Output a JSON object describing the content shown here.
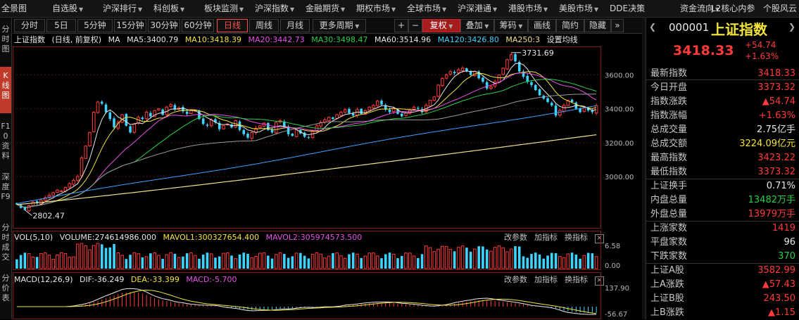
{
  "topmenu": [
    {
      "label": "全景图",
      "arrow": false
    },
    {
      "label": "自选股",
      "arrow": true
    },
    {
      "label": "沪深排行",
      "arrow": true
    },
    {
      "label": "科创板",
      "arrow": true
    },
    {
      "label": "板块监测",
      "arrow": true
    },
    {
      "label": "沪深指数",
      "arrow": true
    },
    {
      "label": "金融期货",
      "arrow": true
    },
    {
      "label": "期权市场",
      "arrow": true
    },
    {
      "label": "全球市场",
      "arrow": true
    },
    {
      "label": "沪深港通",
      "arrow": true
    },
    {
      "label": "港股市场",
      "arrow": true
    },
    {
      "label": "美股市场",
      "arrow": true
    },
    {
      "label": "DDE决策",
      "arrow": false
    },
    {
      "label": "资金流向",
      "arrow": true
    },
    {
      "label": "L2核心内参",
      "arrow": false
    },
    {
      "label": "个股风云",
      "arrow": false
    }
  ],
  "lefttabs": [
    {
      "label": "分时图",
      "active": false
    },
    {
      "label": "K线图",
      "active": true
    },
    {
      "label": "F10资料",
      "active": false
    },
    {
      "label": "深度F9",
      "active": false
    },
    {
      "label": "分时成交",
      "active": false
    },
    {
      "label": "分价表",
      "active": false
    }
  ],
  "toolbar": {
    "periods": [
      "分时",
      "5日",
      "5分钟",
      "15分钟",
      "30分钟",
      "60分钟",
      "日线",
      "周线",
      "月线"
    ],
    "active_period": "日线",
    "more_period": "更多周期",
    "plus": "+",
    "minus": "−",
    "fuquan": "复权",
    "overlay": "叠加",
    "chips": "筹码",
    "draw": "画线",
    "simple": "简约",
    "hide": "隐藏",
    "forward": "»"
  },
  "main_info": {
    "name": "上证指数",
    "mode": "(日线, 前复权)",
    "ma": "MA",
    "ma5": "MA5:3400.79",
    "ma10": "MA10:3418.39",
    "ma20": "MA20:3442.73",
    "ma30": "MA30:3498.47",
    "ma60": "MA60:3514.96",
    "ma120": "MA120:3426.80",
    "ma250": "MA250:3",
    "settings": "设置均线"
  },
  "main_axis": {
    "ticks": [
      3000,
      3200,
      3400,
      3600
    ],
    "labels": [
      "3000.00",
      "3200.00",
      "3400.00",
      "3600.00"
    ],
    "high_label": "3731.69",
    "low_label": "2802.47"
  },
  "vol_info": {
    "name": "VOL(5,10)",
    "volume": "VOLUME:274614986.000",
    "mavol1": "MAVOL1:300327654.400",
    "mavol2": "MAVOL2:305974573.500",
    "ticks": [
      "6.58",
      "0.00"
    ]
  },
  "macd_info": {
    "name": "MACD(12,26,9)",
    "dif": "DIF:-36.249",
    "dea": "DEA:-33.399",
    "macd": "MACD:-5.700",
    "ticks": [
      "137.90",
      "-56.67"
    ]
  },
  "sub_buttons": {
    "params": "改参数",
    "add": "加指标",
    "switch": "换指标",
    "close": "×"
  },
  "colors": {
    "up": "#ff3a3a",
    "down": "#3fd4ff",
    "ma5": "#e8e8e8",
    "ma10": "#f2e43a",
    "ma20": "#e84ee8",
    "ma30": "#29d04a",
    "ma60": "#9a9a9a",
    "ma120": "#3aa0ff",
    "ma250": "#f0e08a"
  },
  "chart_data": {
    "type": "candlestick",
    "title": "上证指数 (日线, 前复权)",
    "ylim": [
      2780,
      3760
    ],
    "closes": [
      2835,
      2815,
      2802,
      2828,
      2850,
      2842,
      2860,
      2875,
      2890,
      2905,
      2920,
      2915,
      2935,
      2958,
      2978,
      3000,
      3110,
      3180,
      3260,
      3380,
      3440,
      3430,
      3380,
      3340,
      3290,
      3320,
      3365,
      3300,
      3260,
      3310,
      3350,
      3340,
      3380,
      3355,
      3390,
      3400,
      3365,
      3410,
      3425,
      3395,
      3405,
      3385,
      3370,
      3395,
      3390,
      3340,
      3310,
      3300,
      3335,
      3320,
      3280,
      3300,
      3310,
      3290,
      3330,
      3275,
      3250,
      3230,
      3260,
      3285,
      3300,
      3315,
      3275,
      3260,
      3320,
      3330,
      3295,
      3250,
      3240,
      3275,
      3255,
      3235,
      3230,
      3265,
      3300,
      3320,
      3335,
      3350,
      3340,
      3365,
      3380,
      3395,
      3375,
      3360,
      3395,
      3370,
      3390,
      3410,
      3420,
      3445,
      3425,
      3395,
      3380,
      3400,
      3370,
      3355,
      3375,
      3395,
      3410,
      3400,
      3380,
      3420,
      3450,
      3470,
      3540,
      3580,
      3600,
      3620,
      3610,
      3630,
      3640,
      3620,
      3600,
      3620,
      3580,
      3560,
      3520,
      3530,
      3560,
      3600,
      3640,
      3690,
      3720,
      3680,
      3620,
      3590,
      3560,
      3540,
      3510,
      3480,
      3460,
      3440,
      3420,
      3360,
      3390,
      3420,
      3450,
      3440,
      3400,
      3380,
      3405,
      3390,
      3380,
      3418.33
    ],
    "volume": {
      "ticks": [
        "6.58",
        "0.00"
      ]
    },
    "macd": {
      "dif": -36.249,
      "dea": -33.399,
      "macd": -5.7,
      "ticks": [
        "137.90",
        "-56.67"
      ]
    }
  },
  "rpanel": {
    "code": "000001",
    "name": "上证指数",
    "price": "3418.33",
    "change": "+54.74",
    "pct": "+1.63%",
    "rows1": [
      {
        "label": "最新指数",
        "value": "3418.33",
        "color": "red"
      },
      {
        "label": "今日开盘",
        "value": "3373.32",
        "color": "red"
      },
      {
        "label": "指数涨跌",
        "value": "▲54.74",
        "color": "red"
      },
      {
        "label": "指数涨幅",
        "value": "+1.63%",
        "color": "red"
      },
      {
        "label": "总成交量",
        "value": "2.75亿手",
        "color": "white"
      },
      {
        "label": "总成交额",
        "value": "3224.09亿元",
        "color": "yellow"
      },
      {
        "label": "最高指数",
        "value": "3423.22",
        "color": "red"
      },
      {
        "label": "最低指数",
        "value": "3373.32",
        "color": "red"
      }
    ],
    "rows2": [
      {
        "label": "上证换手",
        "value": "0.71%",
        "color": "white"
      },
      {
        "label": "内盘总量",
        "value": "13482万手",
        "color": "green"
      },
      {
        "label": "外盘总量",
        "value": "13979万手",
        "color": "red"
      }
    ],
    "rows3": [
      {
        "label": "上涨家数",
        "value": "1419",
        "color": "red"
      },
      {
        "label": "平盘家数",
        "value": "96",
        "color": "white"
      },
      {
        "label": "下跌家数",
        "value": "370",
        "color": "green"
      }
    ],
    "rows4": [
      {
        "label": "上证A股",
        "value": "3582.99",
        "color": "red"
      },
      {
        "label": "上A涨跌",
        "value": "▲57.43",
        "color": "red"
      },
      {
        "label": "上证B股",
        "value": "243.50",
        "color": "red"
      },
      {
        "label": "上B涨跌",
        "value": "▲1.15",
        "color": "red"
      }
    ]
  }
}
